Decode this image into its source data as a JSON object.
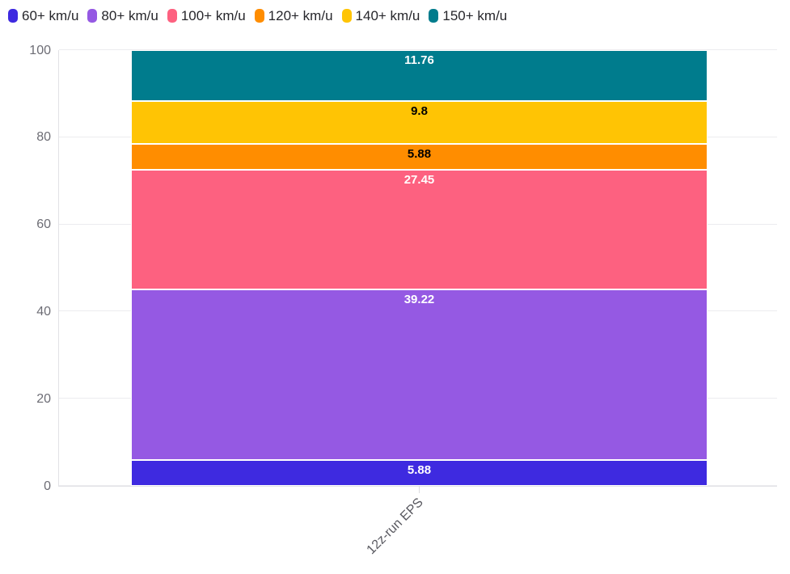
{
  "legend": {
    "items": [
      {
        "label": "60+ km/u",
        "color": "#3e2ae0"
      },
      {
        "label": "80+ km/u",
        "color": "#9559e3"
      },
      {
        "label": "100+ km/u",
        "color": "#fd6180"
      },
      {
        "label": "120+ km/u",
        "color": "#ff8d00"
      },
      {
        "label": "140+ km/u",
        "color": "#ffc404"
      },
      {
        "label": "150+ km/u",
        "color": "#007c8d"
      }
    ]
  },
  "chart_data": {
    "type": "bar",
    "stacked": true,
    "categories": [
      "12z-run EPS"
    ],
    "series": [
      {
        "name": "60+ km/u",
        "values": [
          5.88
        ],
        "label": "5.88",
        "color": "#3e2ae0",
        "label_color": "#ffffff"
      },
      {
        "name": "80+ km/u",
        "values": [
          39.22
        ],
        "label": "39.22",
        "color": "#9559e3",
        "label_color": "#ffffff"
      },
      {
        "name": "100+ km/u",
        "values": [
          27.45
        ],
        "label": "27.45",
        "color": "#fd6180",
        "label_color": "#ffffff"
      },
      {
        "name": "120+ km/u",
        "values": [
          5.88
        ],
        "label": "5.88",
        "color": "#ff8d00",
        "label_color": "#000000"
      },
      {
        "name": "140+ km/u",
        "values": [
          9.8
        ],
        "label": "9.8",
        "color": "#ffc404",
        "label_color": "#000000"
      },
      {
        "name": "150+ km/u",
        "values": [
          11.76
        ],
        "label": "11.76",
        "color": "#007c8d",
        "label_color": "#ffffff"
      }
    ],
    "title": "",
    "xlabel": "",
    "ylabel": "",
    "ylim": [
      0,
      100
    ],
    "yticks": [
      0,
      20,
      40,
      60,
      80,
      100
    ],
    "grid": true,
    "legend_position": "top-left",
    "bar_label_position": "inside-top"
  }
}
